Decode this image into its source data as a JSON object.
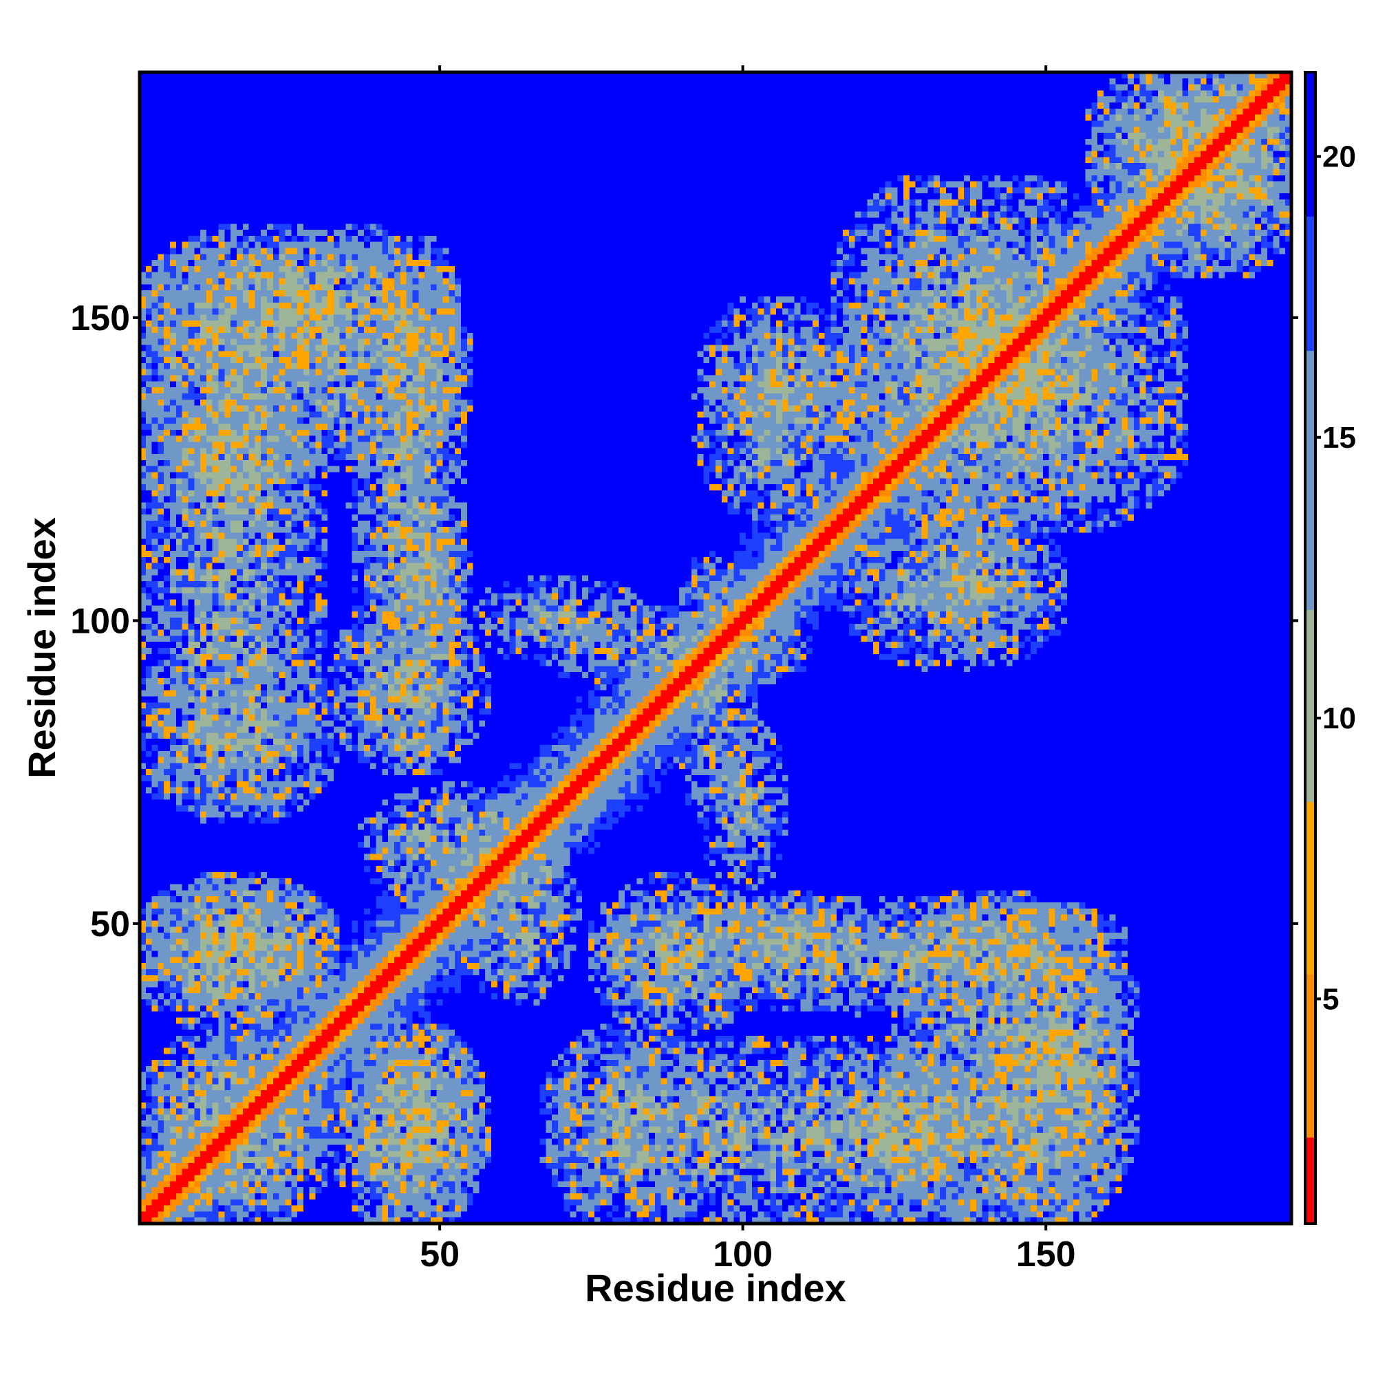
{
  "chart_data": {
    "type": "heatmap",
    "title": "",
    "xlabel": "Residue index",
    "ylabel": "Residue index",
    "n_residues": 190,
    "xlim": [
      1,
      190
    ],
    "ylim": [
      1,
      190
    ],
    "x_ticks": [
      50,
      100,
      150
    ],
    "y_ticks": [
      50,
      100,
      150
    ],
    "colorbar": {
      "range": [
        1,
        21.5
      ],
      "ticks": [
        5,
        10,
        15,
        20
      ],
      "colors": {
        "very_close": "#ff0000",
        "close": "#ff8c00",
        "medium": "#ffa500",
        "near_far": "#9fb59a",
        "far": "#6f98c9",
        "far_edge": "#1e40ff",
        "out_of_range": "#0000ff"
      }
    },
    "diagonal_band_width": 4,
    "contact_regions": [
      {
        "x": [
          3,
          50
        ],
        "y": [
          128,
          162
        ],
        "level": 11.0
      },
      {
        "x": [
          38,
          52
        ],
        "y": [
          78,
          160
        ],
        "level": 11.5
      },
      {
        "x": [
          3,
          28
        ],
        "y": [
          72,
          160
        ],
        "level": 11.5
      },
      {
        "x": [
          3,
          30
        ],
        "y": [
          38,
          55
        ],
        "level": 10.5
      },
      {
        "x": [
          3,
          30
        ],
        "y": [
          3,
          28
        ],
        "level": 11.5
      },
      {
        "x": [
          35,
          55
        ],
        "y": [
          3,
          30
        ],
        "level": 11.0
      },
      {
        "x": [
          70,
          92
        ],
        "y": [
          3,
          30
        ],
        "level": 11.5
      },
      {
        "x": [
          78,
          100
        ],
        "y": [
          35,
          55
        ],
        "level": 11.0
      },
      {
        "x": [
          100,
          115
        ],
        "y": [
          40,
          53
        ],
        "level": 12.0
      },
      {
        "x": [
          120,
          135
        ],
        "y": [
          3,
          25
        ],
        "level": 11.5
      },
      {
        "x": [
          145,
          160
        ],
        "y": [
          3,
          50
        ],
        "level": 11.0
      },
      {
        "x": [
          130,
          152
        ],
        "y": [
          40,
          53
        ],
        "level": 11.5
      },
      {
        "x": [
          58,
          82
        ],
        "y": [
          95,
          105
        ],
        "level": 12.5
      },
      {
        "x": [
          90,
          100
        ],
        "y": [
          72,
          108
        ],
        "level": 12.0
      },
      {
        "x": [
          95,
          115
        ],
        "y": [
          120,
          150
        ],
        "level": 11.5
      },
      {
        "x": [
          120,
          170
        ],
        "y": [
          118,
          160
        ],
        "level": 11.0
      },
      {
        "x": [
          130,
          145
        ],
        "y": [
          100,
          118
        ],
        "level": 12.0
      },
      {
        "x": [
          165,
          190
        ],
        "y": [
          160,
          190
        ],
        "level": 10.5
      },
      {
        "x": [
          55,
          70
        ],
        "y": [
          40,
          65
        ],
        "level": 11.0
      }
    ]
  }
}
